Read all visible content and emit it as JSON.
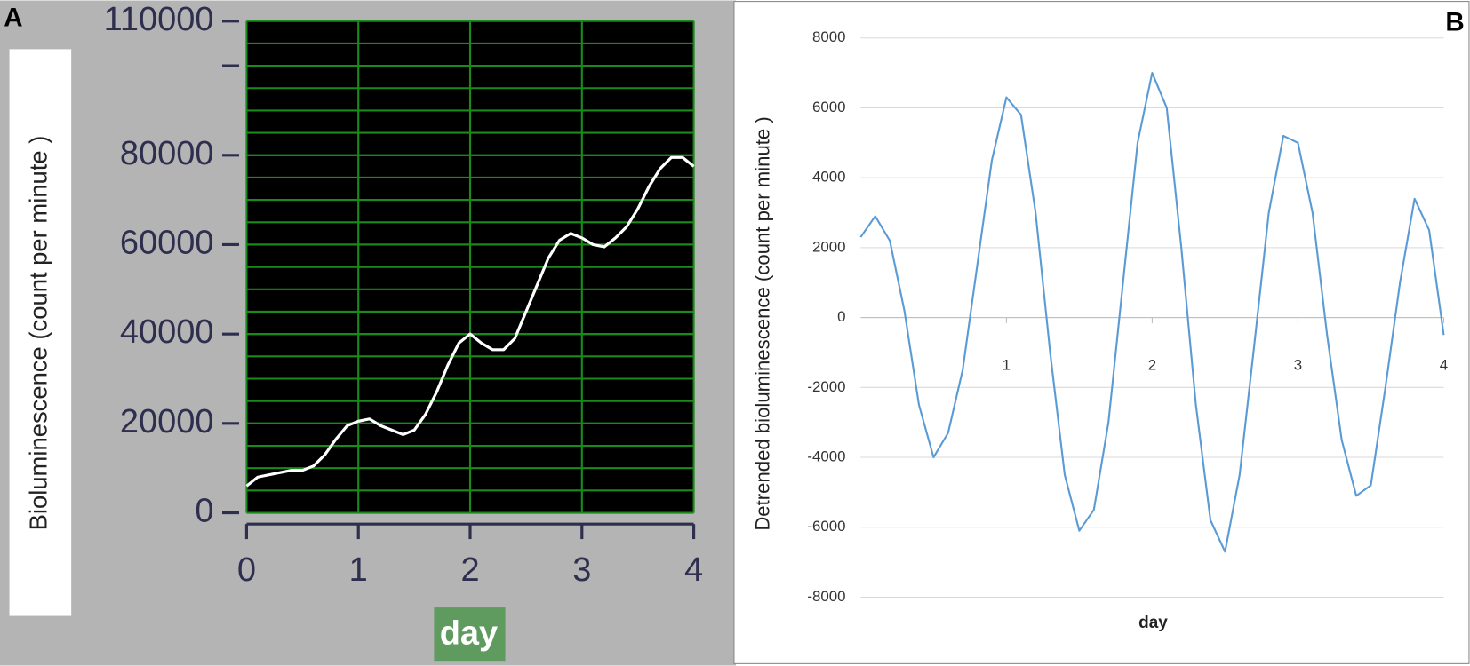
{
  "chart_data": [
    {
      "type": "line",
      "panel_label": "A",
      "ylabel": "Bioluminescence  (count per minute )",
      "xlabel": "day",
      "xlim": [
        0,
        4
      ],
      "xticks": [
        0,
        1,
        2,
        3,
        4
      ],
      "ylim": [
        0,
        110000
      ],
      "yticks": [
        0,
        20000,
        40000,
        60000,
        80000,
        110000
      ],
      "y_unlabeled_ticks": [
        100000
      ],
      "y_minor_gridlines": [
        5000,
        10000,
        15000,
        20000,
        25000,
        30000,
        35000,
        40000,
        45000,
        50000,
        55000,
        60000,
        65000,
        70000,
        75000,
        80000,
        85000,
        90000,
        95000,
        100000,
        105000
      ],
      "grid": "both",
      "color": "#ffffff",
      "background": "#000000",
      "grid_color": "#1a8a1a",
      "x": [
        0,
        0.1,
        0.2,
        0.3,
        0.4,
        0.5,
        0.6,
        0.7,
        0.8,
        0.9,
        1,
        1.1,
        1.2,
        1.3,
        1.4,
        1.5,
        1.6,
        1.7,
        1.8,
        1.9,
        2,
        2.1,
        2.2,
        2.3,
        2.4,
        2.5,
        2.6,
        2.7,
        2.8,
        2.9,
        3,
        3.1,
        3.2,
        3.3,
        3.4,
        3.5,
        3.6,
        3.7,
        3.8,
        3.9,
        4
      ],
      "values": [
        6000,
        8000,
        8500,
        9000,
        9500,
        9500,
        10500,
        13000,
        16500,
        19500,
        20500,
        21000,
        19500,
        18500,
        17500,
        18500,
        22000,
        27000,
        33000,
        38000,
        40000,
        38000,
        36500,
        36500,
        39000,
        45000,
        51000,
        57000,
        61000,
        62500,
        61500,
        60000,
        59500,
        61500,
        64000,
        68000,
        73000,
        77000,
        79500,
        79500,
        77500
      ]
    },
    {
      "type": "line",
      "panel_label": "B",
      "ylabel": "Detrended bioluminescence (count per minute )",
      "xlabel": "day",
      "xlim": [
        0,
        4
      ],
      "xticks": [
        1,
        2,
        3,
        4
      ],
      "ylim": [
        -8000,
        8000
      ],
      "yticks": [
        -8000,
        -6000,
        -4000,
        -2000,
        0,
        2000,
        4000,
        6000,
        8000
      ],
      "grid": "y",
      "color": "#5b9bd5",
      "background": "#ffffff",
      "grid_color": "#d9d9d9",
      "x": [
        0,
        0.1,
        0.2,
        0.3,
        0.4,
        0.5,
        0.6,
        0.7,
        0.8,
        0.9,
        1,
        1.1,
        1.2,
        1.3,
        1.4,
        1.5,
        1.6,
        1.7,
        1.8,
        1.9,
        2,
        2.1,
        2.2,
        2.3,
        2.4,
        2.5,
        2.6,
        2.7,
        2.8,
        2.9,
        3,
        3.1,
        3.2,
        3.3,
        3.4,
        3.5,
        3.6,
        3.7,
        3.8,
        3.9,
        4
      ],
      "values": [
        2300,
        2900,
        2200,
        200,
        -2500,
        -4000,
        -3300,
        -1500,
        1500,
        4500,
        6300,
        5800,
        3000,
        -1000,
        -4500,
        -6100,
        -5500,
        -3000,
        1000,
        5000,
        7000,
        6000,
        2000,
        -2500,
        -5800,
        -6700,
        -4500,
        -800,
        3000,
        5200,
        5000,
        3000,
        -500,
        -3500,
        -5100,
        -4800,
        -2000,
        1000,
        3400,
        2500,
        -500
      ]
    }
  ]
}
